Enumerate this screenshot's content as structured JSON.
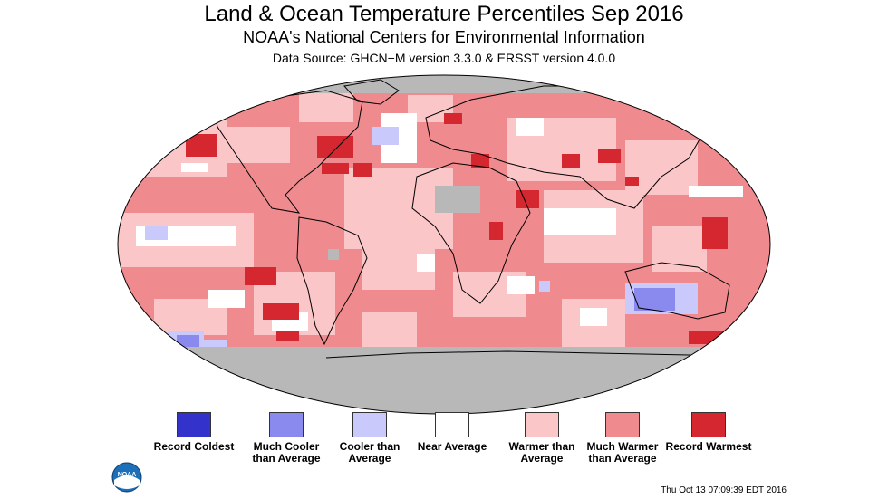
{
  "title": "Land & Ocean Temperature Percentiles Sep 2016",
  "subtitle": "NOAA's National Centers for Environmental Information",
  "source": "Data Source: GHCN−M version 3.3.0 & ERSST version 4.0.0",
  "colors": {
    "record_coldest": "#3333cc",
    "much_cooler": "#8a8aee",
    "cooler": "#c9c9fb",
    "near": "#ffffff",
    "warmer": "#fbc6c8",
    "much_warmer": "#ef8a8e",
    "record_warmest": "#d4272f",
    "missing": "#b8b8b8"
  },
  "legend": [
    {
      "label": "Record Coldest",
      "color_key": "record_coldest"
    },
    {
      "label": "Much Cooler than Average",
      "color_key": "much_cooler"
    },
    {
      "label": "Cooler than Average",
      "color_key": "cooler"
    },
    {
      "label": "Near Average",
      "color_key": "near"
    },
    {
      "label": "Warmer than Average",
      "color_key": "warmer"
    },
    {
      "label": "Much Warmer than Average",
      "color_key": "much_warmer"
    },
    {
      "label": "Record Warmest",
      "color_key": "record_warmest"
    }
  ],
  "logo": {
    "text": "NOAA",
    "icon": "noaa-logo-icon"
  },
  "timestamp": "Thu Oct 13 07:09:39 EDT 2016"
}
